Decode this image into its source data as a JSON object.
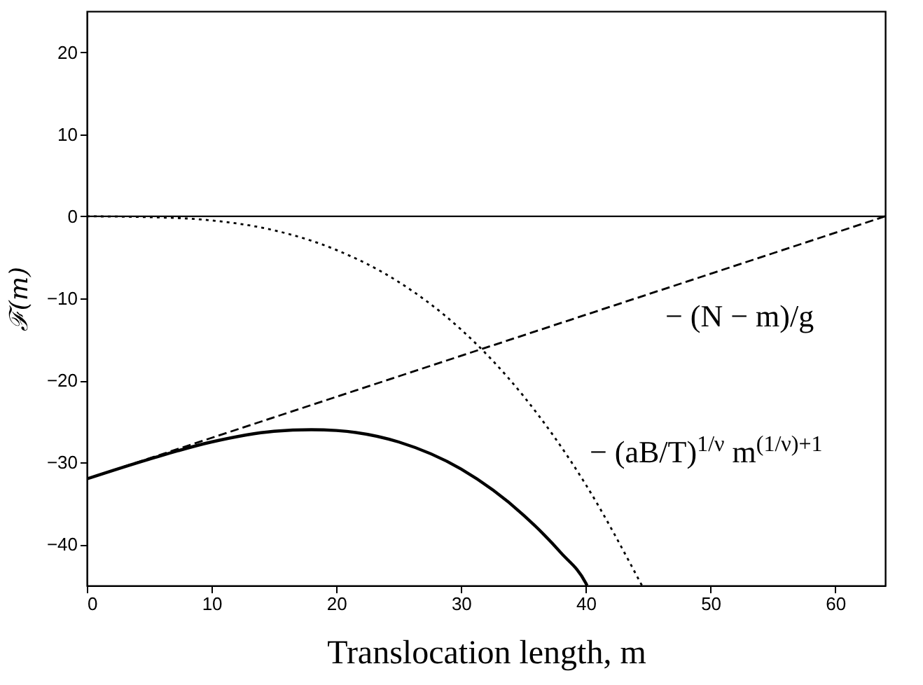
{
  "chart_data": {
    "type": "line",
    "xlabel": "Translocation length, m",
    "ylabel": "ℱ(m)",
    "xlim": [
      0,
      64
    ],
    "ylim": [
      -45,
      25
    ],
    "xticks": [
      0,
      10,
      20,
      30,
      40,
      50,
      60
    ],
    "yticks": [
      -40,
      -30,
      -20,
      -10,
      0,
      10,
      20
    ],
    "grid": false,
    "ref_lines": [
      {
        "axis": "y",
        "value": 0,
        "color": "#000000",
        "line_style": "solid"
      }
    ],
    "series": [
      {
        "color": "#000000",
        "line_style": "solid",
        "x": [
          0,
          5,
          10,
          15,
          18,
          20,
          25,
          30,
          35,
          38,
          40,
          40.1
        ],
        "values": [
          -32,
          -29.6,
          -27.5,
          -26.2,
          -26,
          -26.1,
          -27.5,
          -30.8,
          -36.4,
          -41,
          -44.7,
          -45
        ]
      },
      {
        "name": "− (N − m)/g",
        "color": "#000000",
        "line_style": "dashed",
        "x": [
          0,
          64
        ],
        "values": [
          -32,
          0
        ]
      },
      {
        "name": "− (aB/T)$^{1/ν}$ m$^{(1/ν)+1}$",
        "color": "#000000",
        "line_style": "dotted",
        "x": [
          0,
          5,
          10,
          15,
          20,
          25,
          30,
          35,
          40,
          44.5
        ],
        "values": [
          0,
          -0.1,
          -0.5,
          -1.7,
          -4.1,
          -8,
          -13.8,
          -21.9,
          -32.7,
          -45
        ]
      }
    ]
  }
}
